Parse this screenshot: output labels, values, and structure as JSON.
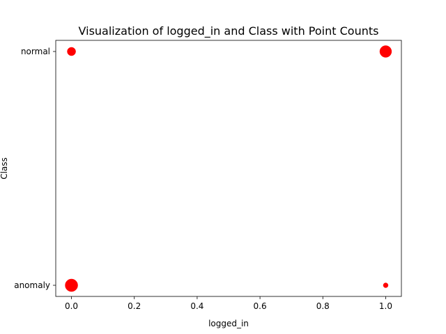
{
  "chart_data": {
    "type": "scatter",
    "title": "Visualization of logged_in and Class with Point Counts",
    "xlabel": "logged_in",
    "ylabel": "Class",
    "xlim": [
      -0.05,
      1.05
    ],
    "x_ticks": [
      0.0,
      0.2,
      0.4,
      0.6,
      0.8,
      1.0
    ],
    "x_tick_labels": [
      "0.0",
      "0.2",
      "0.4",
      "0.6",
      "0.8",
      "1.0"
    ],
    "categories": [
      "anomaly",
      "normal"
    ],
    "point_color": "#ff0000",
    "grid": false,
    "points": [
      {
        "x": 0,
        "y": "normal",
        "relative_size": 0.45
      },
      {
        "x": 1,
        "y": "normal",
        "relative_size": 0.88
      },
      {
        "x": 0,
        "y": "anomaly",
        "relative_size": 1.0
      },
      {
        "x": 1,
        "y": "anomaly",
        "relative_size": 0.15
      }
    ]
  }
}
